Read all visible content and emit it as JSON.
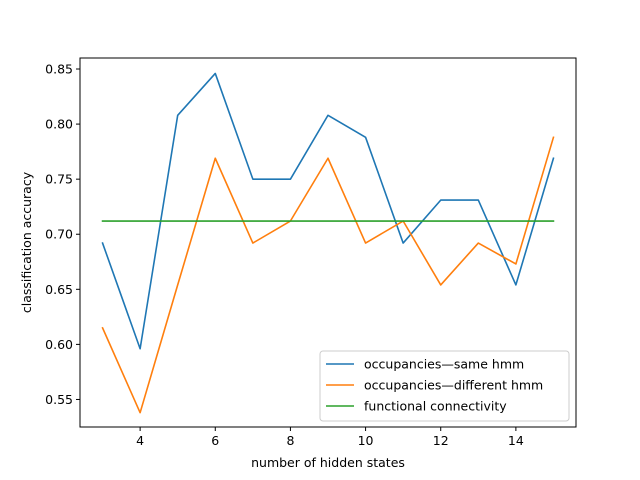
{
  "chart_data": {
    "type": "line",
    "title": "",
    "xlabel": "number of hidden states",
    "ylabel": "classification accuracy",
    "xlim": [
      2.4,
      15.6
    ],
    "ylim": [
      0.525,
      0.86
    ],
    "xticks": [
      4,
      6,
      8,
      10,
      12,
      14
    ],
    "yticks": [
      0.55,
      0.6,
      0.65,
      0.7,
      0.75,
      0.8,
      0.85
    ],
    "grid": false,
    "legend_position": "lower-right",
    "x": [
      3,
      4,
      5,
      6,
      7,
      8,
      9,
      10,
      11,
      12,
      13,
      14,
      15
    ],
    "series": [
      {
        "name": "occupancies—same hmm",
        "color": "#1f77b4",
        "values": [
          0.692,
          0.596,
          0.808,
          0.846,
          0.75,
          0.75,
          0.808,
          0.788,
          0.692,
          0.731,
          0.731,
          0.654,
          0.769
        ]
      },
      {
        "name": "occupancies—different hmm",
        "color": "#ff7f0e",
        "values": [
          0.615,
          0.538,
          0.654,
          0.769,
          0.692,
          0.712,
          0.769,
          0.692,
          0.712,
          0.654,
          0.692,
          0.673,
          0.788
        ]
      },
      {
        "name": "functional connectivity",
        "color": "#2ca02c",
        "values": [
          0.712,
          0.712,
          0.712,
          0.712,
          0.712,
          0.712,
          0.712,
          0.712,
          0.712,
          0.712,
          0.712,
          0.712,
          0.712
        ]
      }
    ]
  }
}
